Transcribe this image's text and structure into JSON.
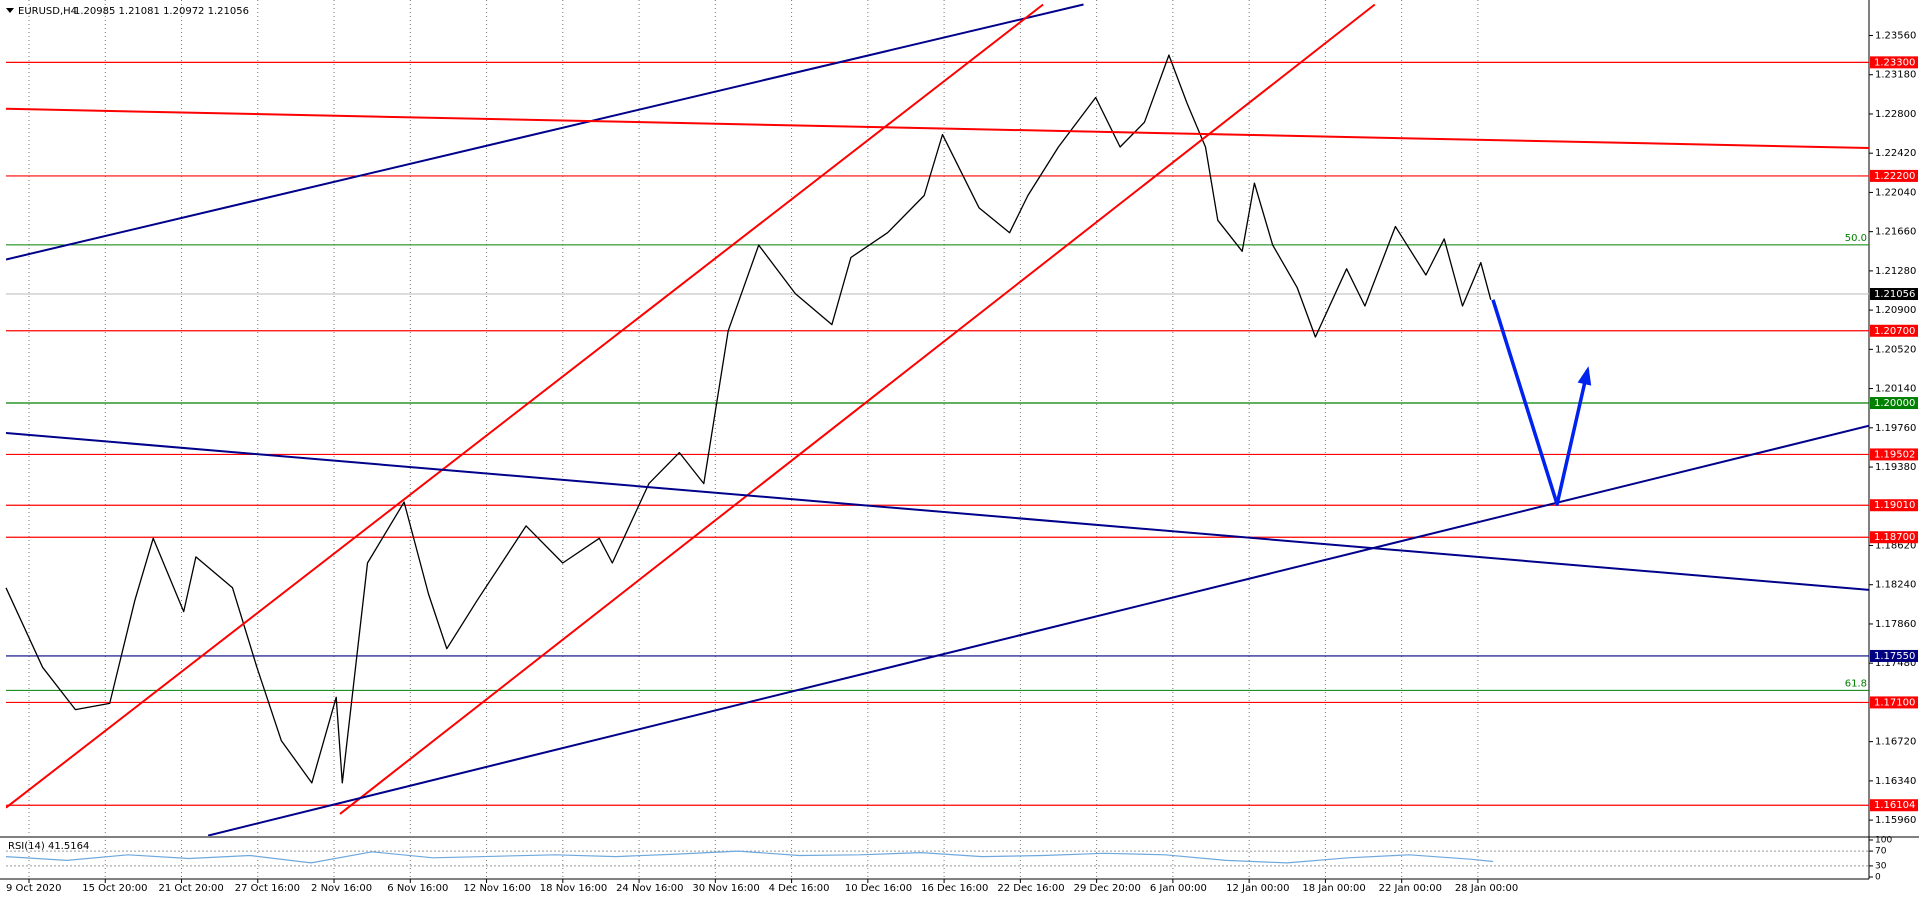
{
  "chart_data": [
    {
      "type": "line",
      "title": "EURUSD,H4",
      "subtitle": "1.20985 1.21081 1.20972 1.21056",
      "color": "#000000",
      "grid": true,
      "xlim": [
        0,
        24.43
      ],
      "ylim": [
        1.15806,
        1.23904
      ],
      "xticks": [
        {
          "value": 0,
          "label": "9 Oct 2020"
        },
        {
          "value": 1,
          "label": "15 Oct 20:00"
        },
        {
          "value": 2,
          "label": "21 Oct 20:00"
        },
        {
          "value": 3,
          "label": "27 Oct 16:00"
        },
        {
          "value": 4,
          "label": "2 Nov 16:00"
        },
        {
          "value": 5,
          "label": "6 Nov 16:00"
        },
        {
          "value": 6,
          "label": "12 Nov 16:00"
        },
        {
          "value": 7,
          "label": "18 Nov 16:00"
        },
        {
          "value": 8,
          "label": "24 Nov 16:00"
        },
        {
          "value": 9,
          "label": "30 Nov 16:00"
        },
        {
          "value": 10,
          "label": "4 Dec 16:00"
        },
        {
          "value": 11,
          "label": "10 Dec 16:00"
        },
        {
          "value": 12,
          "label": "16 Dec 16:00"
        },
        {
          "value": 13,
          "label": "22 Dec 16:00"
        },
        {
          "value": 14,
          "label": "29 Dec 20:00"
        },
        {
          "value": 15,
          "label": "6 Jan 00:00"
        },
        {
          "value": 16,
          "label": "12 Jan 00:00"
        },
        {
          "value": 17,
          "label": "18 Jan 00:00"
        },
        {
          "value": 18,
          "label": "22 Jan 00:00"
        },
        {
          "value": 19,
          "label": "28 Jan 00:00"
        }
      ],
      "yticks": [
        {
          "value": 1.2356,
          "label": "1.23560"
        },
        {
          "value": 1.2318,
          "label": "1.23180"
        },
        {
          "value": 1.228,
          "label": "1.22800"
        },
        {
          "value": 1.2242,
          "label": "1.22420"
        },
        {
          "value": 1.2204,
          "label": "1.22040"
        },
        {
          "value": 1.2166,
          "label": "1.21660"
        },
        {
          "value": 1.2128,
          "label": "1.21280"
        },
        {
          "value": 1.209,
          "label": "1.20900"
        },
        {
          "value": 1.2052,
          "label": "1.20520"
        },
        {
          "value": 1.2014,
          "label": "1.20140"
        },
        {
          "value": 1.1976,
          "label": "1.19760"
        },
        {
          "value": 1.1938,
          "label": "1.19380"
        },
        {
          "value": 1.1862,
          "label": "1.18620"
        },
        {
          "value": 1.1824,
          "label": "1.18240"
        },
        {
          "value": 1.1786,
          "label": "1.17860"
        },
        {
          "value": 1.1748,
          "label": "1.17480"
        },
        {
          "value": 1.1672,
          "label": "1.16720"
        },
        {
          "value": 1.1634,
          "label": "1.16340"
        },
        {
          "value": 1.1596,
          "label": "1.15960"
        }
      ],
      "x": [
        0,
        0.48,
        0.91,
        1.36,
        1.69,
        1.93,
        2.33,
        2.49,
        2.97,
        3.29,
        3.61,
        4.01,
        4.33,
        4.41,
        4.74,
        5.22,
        5.54,
        5.78,
        6.18,
        6.82,
        7.3,
        7.78,
        7.95,
        8.43,
        8.83,
        9.15,
        9.47,
        9.87,
        10.35,
        10.83,
        11.08,
        11.56,
        12.04,
        12.28,
        12.76,
        13.16,
        13.4,
        13.8,
        14.29,
        14.61,
        14.93,
        15.25,
        15.49,
        15.73,
        15.89,
        16.21,
        16.37,
        16.61,
        16.93,
        17.17,
        17.58,
        17.82,
        18.22,
        18.62,
        18.86,
        19.1,
        19.34,
        19.47
      ],
      "values": [
        1.1821,
        1.1744,
        1.1703,
        1.1709,
        1.1809,
        1.1869,
        1.1798,
        1.1851,
        1.1821,
        1.1744,
        1.1673,
        1.1632,
        1.1715,
        1.1632,
        1.1845,
        1.1904,
        1.1815,
        1.1762,
        1.1809,
        1.1881,
        1.1845,
        1.1869,
        1.1845,
        1.1922,
        1.1952,
        1.1922,
        1.207,
        1.2153,
        1.2106,
        1.2076,
        1.2141,
        1.2165,
        1.2201,
        1.226,
        1.2189,
        1.2165,
        1.2201,
        1.2248,
        1.2296,
        1.2248,
        1.2272,
        1.2337,
        1.229,
        1.2248,
        1.2177,
        1.2147,
        1.2213,
        1.2153,
        1.2112,
        1.2064,
        1.213,
        1.2094,
        1.2171,
        1.2124,
        1.2159,
        1.2094,
        1.2136,
        1.21
      ],
      "levels": [
        {
          "value": 1.233,
          "label": "1.23300",
          "color": "#ff0000"
        },
        {
          "value": 1.222,
          "label": "1.22200",
          "color": "#ff0000"
        },
        {
          "value": 1.21056,
          "label": "1.21056",
          "color": "#000000",
          "line_color": "#c8c8c8"
        },
        {
          "value": 1.207,
          "label": "1.20700",
          "color": "#ff0000"
        },
        {
          "value": 1.2,
          "label": "1.20000",
          "color": "#008000"
        },
        {
          "value": 1.19502,
          "label": "1.19502",
          "color": "#ff0000"
        },
        {
          "value": 1.1901,
          "label": "1.19010",
          "color": "#ff0000"
        },
        {
          "value": 1.187,
          "label": "1.18700",
          "color": "#ff0000"
        },
        {
          "value": 1.1755,
          "label": "1.17550",
          "color": "#000080"
        },
        {
          "value": 1.171,
          "label": "1.17100",
          "color": "#ff0000"
        },
        {
          "value": 1.16104,
          "label": "1.16104",
          "color": "#ff0000"
        }
      ],
      "fib_levels": [
        {
          "value": 1.21532,
          "label": "50.0"
        },
        {
          "value": 1.17217,
          "label": "61.8"
        }
      ],
      "fib_color": "#008000",
      "trendlines": [
        {
          "x": [
            0,
            14.13
          ],
          "values": [
            1.2139,
            1.2386
          ],
          "color": "#00008b"
        },
        {
          "x": [
            0,
            24.43
          ],
          "values": [
            1.2285,
            1.2247
          ],
          "color": "#ff0000"
        },
        {
          "x": [
            0,
            13.6
          ],
          "values": [
            1.1608,
            1.2386
          ],
          "color": "#ff0000"
        },
        {
          "x": [
            4.38,
            17.95
          ],
          "values": [
            1.1602,
            1.2386
          ],
          "color": "#ff0000"
        },
        {
          "x": [
            0,
            24.43
          ],
          "values": [
            1.1971,
            1.1819
          ],
          "color": "#00008b"
        },
        {
          "x": [
            2.65,
            24.43
          ],
          "values": [
            1.1581,
            1.1978
          ],
          "color": "#00008b"
        }
      ],
      "arrow": {
        "x": [
          19.5,
          20.34,
          20.74
        ],
        "values": [
          1.21,
          1.1902,
          1.2032
        ],
        "color": "#0022ee"
      }
    },
    {
      "type": "line",
      "title": "RSI(14) 41.5164",
      "color": "#6fa8dc",
      "xlim": [
        0,
        24.43
      ],
      "ylim": [
        0,
        100
      ],
      "yticks": [
        100,
        70,
        30,
        0
      ],
      "x": [
        0,
        0.8,
        1.6,
        2.4,
        3.2,
        4.0,
        4.8,
        5.6,
        6.4,
        7.2,
        8.0,
        8.8,
        9.6,
        10.4,
        11.2,
        12.0,
        12.8,
        13.6,
        14.4,
        15.2,
        16.0,
        16.8,
        17.6,
        18.4,
        19.2,
        19.5
      ],
      "values": [
        55,
        45,
        60,
        50,
        58,
        38,
        68,
        52,
        56,
        60,
        55,
        62,
        70,
        58,
        60,
        66,
        55,
        58,
        64,
        60,
        45,
        38,
        52,
        60,
        48,
        42
      ]
    }
  ]
}
